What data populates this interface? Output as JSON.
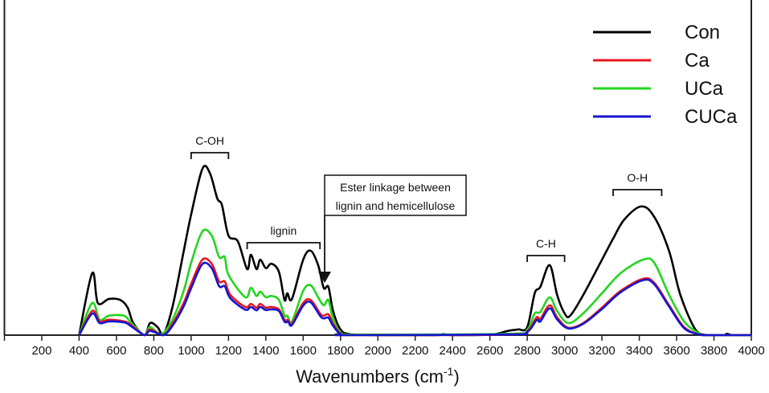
{
  "chart_data": {
    "type": "line",
    "title": "",
    "xlabel": "Wavenumbers (cm",
    "xlabel_sup": "-1",
    "xlabel_close": ")",
    "ylabel": "",
    "xlim": [
      0,
      4000
    ],
    "ylim": [
      0,
      100
    ],
    "xticks": [
      200,
      400,
      600,
      800,
      1000,
      1200,
      1400,
      1600,
      1800,
      2000,
      2200,
      2400,
      2600,
      2800,
      3000,
      3200,
      3400,
      3600,
      3800,
      4000
    ],
    "grid": false,
    "legend_position": "top-right",
    "series": [
      {
        "name": "Con",
        "color": "#000000",
        "x": [
          400,
          470,
          500,
          560,
          620,
          660,
          690,
          750,
          780,
          820,
          850,
          900,
          960,
          1000,
          1060,
          1100,
          1140,
          1165,
          1200,
          1250,
          1300,
          1320,
          1350,
          1370,
          1400,
          1430,
          1470,
          1500,
          1515,
          1540,
          1600,
          1640,
          1680,
          1710,
          1735,
          1760,
          1800,
          1850,
          2000,
          2300,
          2350,
          2400,
          2600,
          2700,
          2750,
          2800,
          2840,
          2870,
          2920,
          2960,
          3000,
          3030,
          3100,
          3200,
          3260,
          3320,
          3410,
          3480,
          3560,
          3620,
          3700,
          3760,
          3850,
          3870,
          3900,
          4000
        ],
        "y": [
          0,
          18.5,
          9.6,
          10.8,
          10.5,
          8.2,
          3.6,
          0,
          3.6,
          2.4,
          0,
          8.4,
          25,
          36,
          49.6,
          48.4,
          40.8,
          38.8,
          29.7,
          28,
          19.7,
          24,
          19.7,
          22.5,
          20,
          21.3,
          18.9,
          10.5,
          12.5,
          10.8,
          22.5,
          25.2,
          20.9,
          14.1,
          14.4,
          7.2,
          1.7,
          0.3,
          0,
          0,
          0.3,
          0,
          0.1,
          1.3,
          1.7,
          2.4,
          12.5,
          14.4,
          20.9,
          12,
          6.5,
          5.8,
          12,
          22.5,
          28.8,
          34.5,
          38.4,
          35.3,
          25,
          12,
          1.7,
          0,
          0,
          0.4,
          0,
          0
        ]
      },
      {
        "name": "Ca",
        "color": "#e8161b",
        "x": [
          400,
          470,
          510,
          560,
          640,
          670,
          750,
          780,
          850,
          900,
          960,
          1000,
          1060,
          1110,
          1150,
          1180,
          1210,
          1290,
          1320,
          1350,
          1370,
          1400,
          1430,
          1470,
          1500,
          1520,
          1540,
          1600,
          1640,
          1690,
          1710,
          1735,
          1760,
          1800,
          1850,
          2700,
          2800,
          2850,
          2870,
          2920,
          2960,
          3020,
          3100,
          3200,
          3300,
          3420,
          3480,
          3560,
          3640,
          3720,
          3760,
          4000
        ],
        "y": [
          0,
          7.2,
          4.1,
          4.6,
          4.1,
          3.4,
          0,
          1.7,
          0,
          3.4,
          9.6,
          15.3,
          22.5,
          21.3,
          16,
          16,
          12,
          8.4,
          9.3,
          8.2,
          9.3,
          8.2,
          8.4,
          7.7,
          4.6,
          4.5,
          3.4,
          9.6,
          10.5,
          6.5,
          5.8,
          6.2,
          3.4,
          0.5,
          0,
          0.2,
          1.2,
          5.3,
          4.8,
          8.9,
          5.3,
          2.2,
          3.6,
          8.2,
          13.2,
          16.8,
          15.6,
          8.9,
          2.4,
          0.2,
          0,
          0
        ]
      },
      {
        "name": "UCa",
        "color": "#22d61d",
        "x": [
          400,
          470,
          510,
          560,
          640,
          680,
          750,
          780,
          840,
          900,
          960,
          1000,
          1060,
          1110,
          1150,
          1180,
          1200,
          1290,
          1320,
          1350,
          1370,
          1400,
          1430,
          1470,
          1500,
          1515,
          1540,
          1600,
          1640,
          1680,
          1710,
          1735,
          1760,
          1800,
          1850,
          2700,
          2800,
          2840,
          2870,
          2920,
          2960,
          3020,
          3100,
          3200,
          3300,
          3420,
          3480,
          3560,
          3640,
          3720,
          3760,
          4000
        ],
        "y": [
          0,
          9.6,
          4.6,
          5.8,
          5.8,
          3.6,
          0,
          2.4,
          0.3,
          4.6,
          13.2,
          21.6,
          30.9,
          29.7,
          23.3,
          23.3,
          18,
          11.3,
          14.1,
          11.7,
          13,
          11.3,
          11.7,
          10.5,
          5.8,
          5.8,
          4.1,
          13.2,
          14.9,
          11.3,
          8.9,
          10.5,
          4.8,
          0.9,
          0.2,
          0.4,
          1.7,
          6.5,
          6.9,
          11.3,
          7.2,
          3.6,
          6.5,
          12.5,
          18.5,
          22.5,
          21.6,
          12,
          4.1,
          0.5,
          0,
          0
        ]
      },
      {
        "name": "CUCa",
        "color": "#1515d0",
        "x": [
          400,
          470,
          510,
          560,
          640,
          670,
          750,
          780,
          850,
          900,
          960,
          1000,
          1060,
          1110,
          1150,
          1180,
          1210,
          1290,
          1320,
          1350,
          1370,
          1400,
          1430,
          1470,
          1500,
          1520,
          1540,
          1600,
          1640,
          1690,
          1710,
          1735,
          1760,
          1800,
          1850,
          2700,
          2800,
          2850,
          2870,
          2920,
          2960,
          3020,
          3100,
          3200,
          3300,
          3420,
          3480,
          3560,
          3640,
          3720,
          3760,
          4000
        ],
        "y": [
          0,
          6.4,
          3.6,
          4.1,
          3.8,
          3,
          0,
          1.3,
          0,
          2.8,
          8.6,
          14,
          21.2,
          20,
          14.6,
          14.6,
          11,
          7.6,
          8.4,
          7.4,
          8.4,
          7.5,
          7.7,
          7.2,
          4,
          4,
          3,
          8.8,
          9.8,
          5.8,
          5,
          5.2,
          2.8,
          0.3,
          0,
          0.2,
          1,
          4.5,
          4.1,
          8,
          4.7,
          2,
          3.4,
          7.8,
          12.8,
          16.4,
          15.2,
          8.5,
          2.1,
          0.2,
          0,
          0
        ]
      }
    ],
    "annotations": [
      {
        "text": "C-OH",
        "bracket": [
          1000,
          1200
        ]
      },
      {
        "text": "lignin",
        "bracket": [
          1300,
          1690
        ]
      },
      {
        "text": "C-H",
        "bracket": [
          2800,
          3000
        ]
      },
      {
        "text": "O-H",
        "bracket": [
          3260,
          3520
        ]
      },
      {
        "text_lines": [
          "Ester linkage between",
          "lignin and hemicellulose"
        ],
        "arrow_to": 1720
      }
    ]
  }
}
